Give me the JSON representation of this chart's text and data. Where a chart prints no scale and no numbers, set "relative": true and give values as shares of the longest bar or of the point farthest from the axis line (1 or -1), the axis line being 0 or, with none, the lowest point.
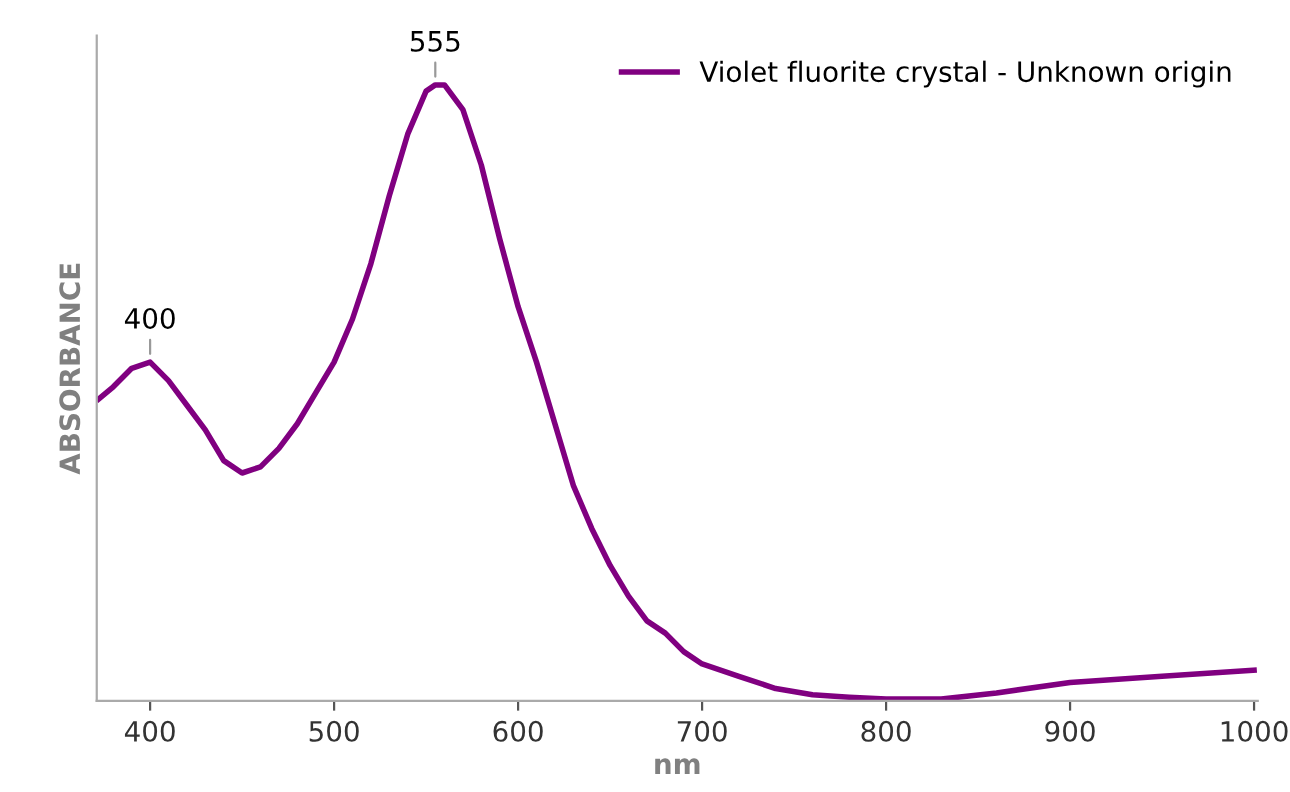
{
  "chart_data": {
    "type": "line",
    "relative": true,
    "xlabel": "nm",
    "ylabel": "ABSORBANCE",
    "xlim": [
      371,
      1002
    ],
    "xticks": [
      400,
      500,
      600,
      700,
      800,
      900,
      1000
    ],
    "tick_labels": "x",
    "grid": false,
    "legend": "top right",
    "annotations": [
      {
        "text": "400",
        "x": 400,
        "y": 0.55
      },
      {
        "text": "555",
        "x": 555,
        "y": 1.0
      }
    ],
    "series": [
      {
        "name": "Violet fluorite crystal - Unknown origin",
        "color": "#800080",
        "x": [
          372,
          380,
          390,
          400,
          410,
          420,
          430,
          440,
          450,
          460,
          470,
          480,
          490,
          500,
          510,
          520,
          530,
          540,
          550,
          555,
          560,
          570,
          580,
          590,
          600,
          610,
          620,
          630,
          640,
          650,
          660,
          670,
          680,
          690,
          700,
          720,
          740,
          760,
          780,
          800,
          830,
          860,
          900,
          950,
          1000
        ],
        "values": [
          0.49,
          0.51,
          0.54,
          0.55,
          0.52,
          0.48,
          0.44,
          0.39,
          0.37,
          0.38,
          0.41,
          0.45,
          0.5,
          0.55,
          0.62,
          0.71,
          0.82,
          0.92,
          0.99,
          1.0,
          1.0,
          0.96,
          0.87,
          0.75,
          0.64,
          0.55,
          0.45,
          0.35,
          0.28,
          0.22,
          0.17,
          0.13,
          0.11,
          0.08,
          0.06,
          0.04,
          0.02,
          0.01,
          0.006,
          0.003,
          0.003,
          0.013,
          0.03,
          0.04,
          0.05
        ]
      }
    ]
  }
}
